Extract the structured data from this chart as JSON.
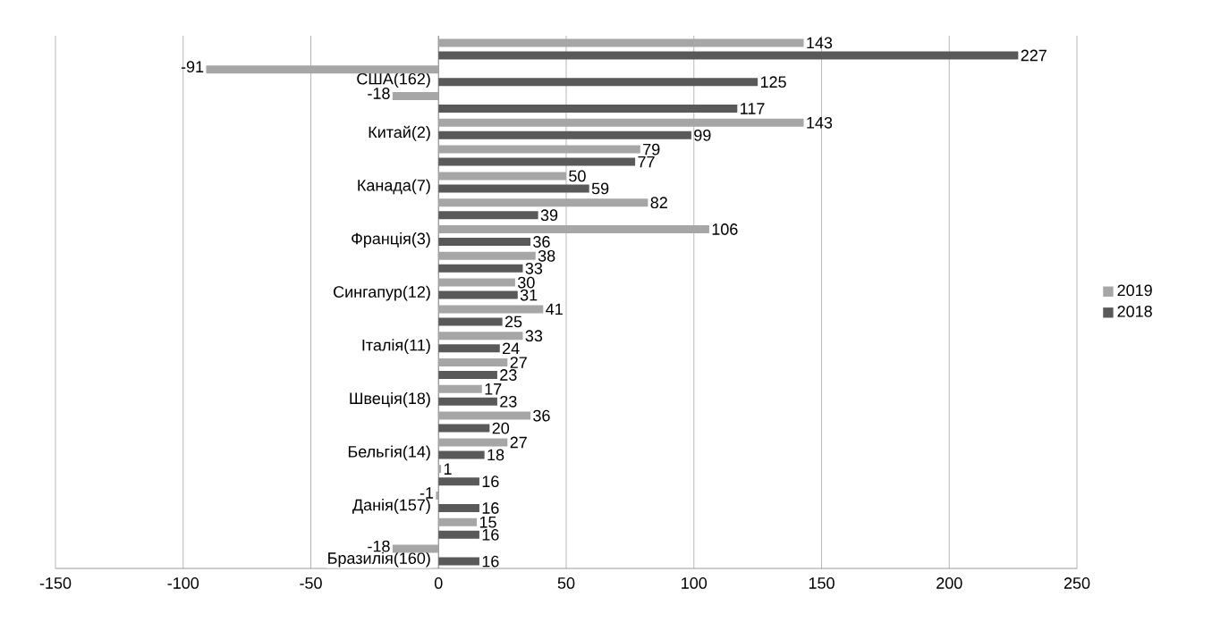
{
  "chart_data": {
    "type": "bar",
    "orientation": "horizontal",
    "categories": [
      null,
      "США(162)",
      null,
      "Китай(2)",
      null,
      "Канада(7)",
      null,
      "Франція(3)",
      null,
      "Сингапур(12)",
      null,
      "Італія(11)",
      null,
      "Швеція(18)",
      null,
      "Бельгія(14)",
      null,
      "Данія(157)",
      null,
      "Бразилія(160)"
    ],
    "series": [
      {
        "name": "2019",
        "color": "#a6a6a6",
        "values": [
          143,
          -91,
          -18,
          143,
          79,
          50,
          82,
          106,
          38,
          30,
          41,
          33,
          27,
          17,
          36,
          27,
          1,
          -1,
          15,
          -18
        ]
      },
      {
        "name": "2018",
        "color": "#595959",
        "values": [
          227,
          125,
          117,
          99,
          77,
          59,
          39,
          36,
          33,
          31,
          25,
          24,
          23,
          23,
          20,
          18,
          16,
          16,
          16,
          16
        ]
      }
    ],
    "xlim": [
      -150,
      250
    ],
    "xticks": [
      -150,
      -100,
      -50,
      0,
      50,
      100,
      150,
      200,
      250
    ],
    "grid": "x",
    "legend": "right",
    "data_labels": true
  }
}
